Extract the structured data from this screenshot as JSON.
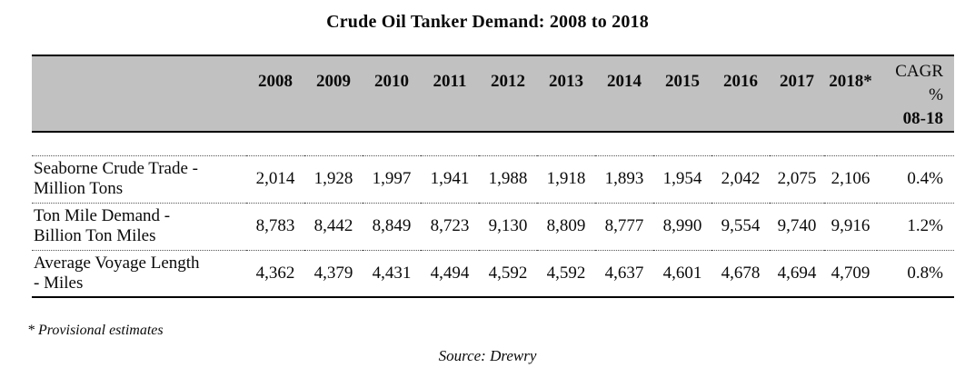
{
  "title": "Crude Oil Tanker Demand: 2008 to 2018",
  "colors": {
    "header_bg": "#c1c1c1",
    "text": "#0a0a0a"
  },
  "table": {
    "year_headers": [
      "2008",
      "2009",
      "2010",
      "2011",
      "2012",
      "2013",
      "2014",
      "2015",
      "2016",
      "2017",
      "2018*"
    ],
    "cagr_header": {
      "line1": "CAGR",
      "line2": "%",
      "line3": "08-18"
    },
    "rows": [
      {
        "label_lines": [
          "Seaborne Crude Trade -",
          "Million Tons"
        ],
        "values": [
          "2,014",
          "1,928",
          "1,997",
          "1,941",
          "1,988",
          "1,918",
          "1,893",
          "1,954",
          "2,042",
          "2,075",
          "2,106"
        ],
        "cagr": "0.4%"
      },
      {
        "label_lines": [
          "Ton Mile Demand -",
          "Billion Ton Miles"
        ],
        "values": [
          "8,783",
          "8,442",
          "8,849",
          "8,723",
          "9,130",
          "8,809",
          "8,777",
          "8,990",
          "9,554",
          "9,740",
          "9,916"
        ],
        "cagr": "1.2%"
      },
      {
        "label_lines": [
          "Average Voyage Length",
          "- Miles"
        ],
        "values": [
          "4,362",
          "4,379",
          "4,431",
          "4,494",
          "4,592",
          "4,592",
          "4,637",
          "4,601",
          "4,678",
          "4,694",
          "4,709"
        ],
        "cagr": "0.8%"
      }
    ]
  },
  "footnote": "* Provisional estimates",
  "source": "Source: Drewry"
}
